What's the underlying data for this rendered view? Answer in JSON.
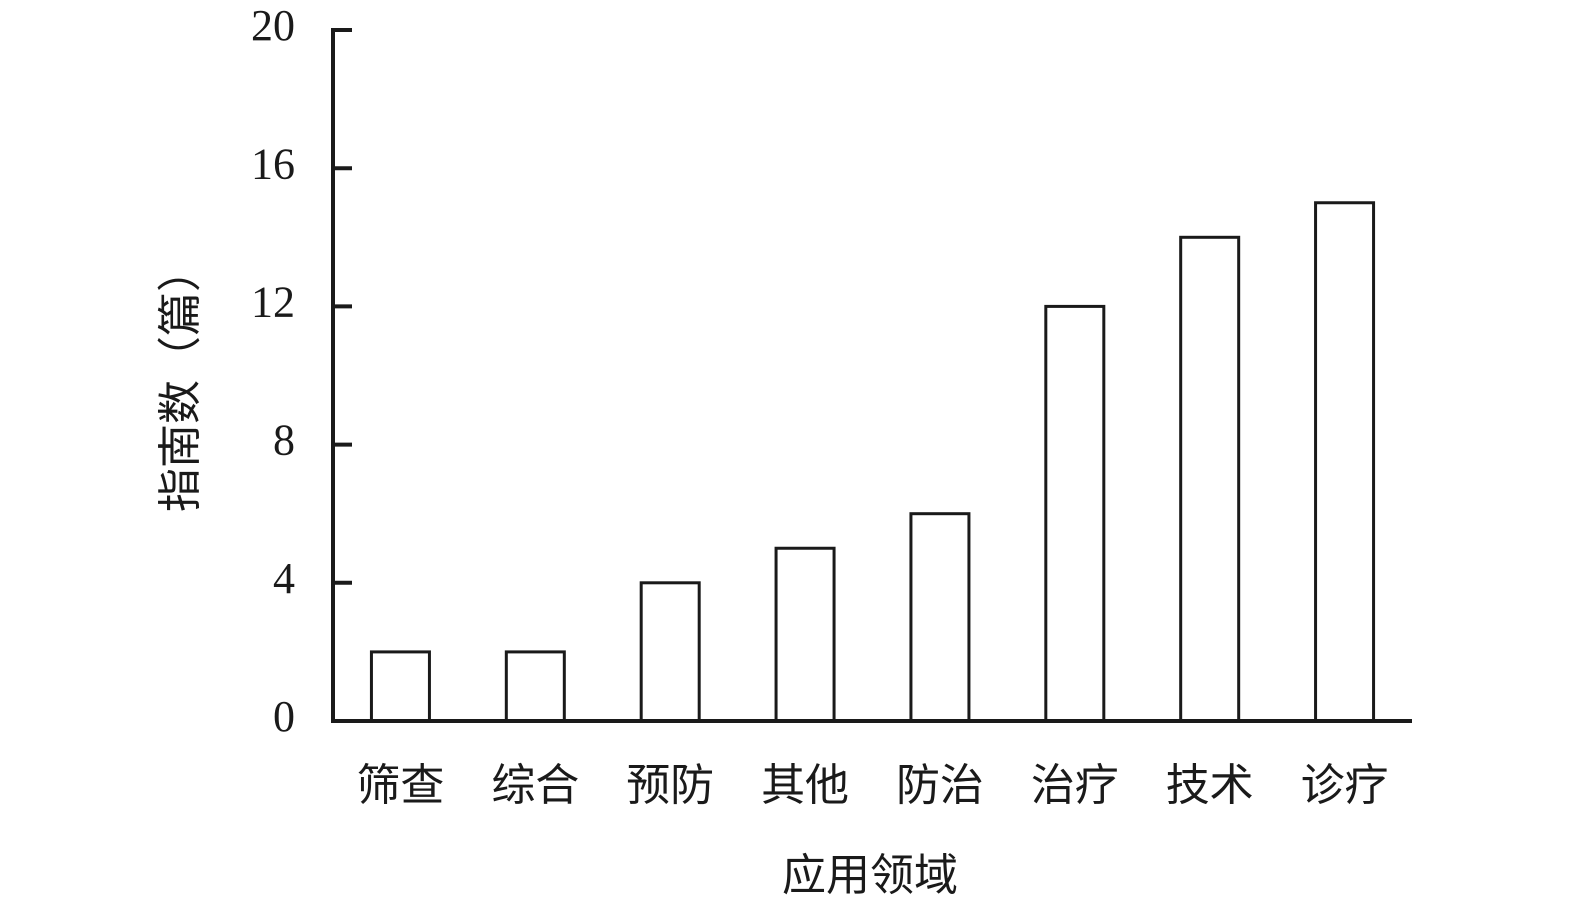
{
  "chart_data": {
    "type": "bar",
    "x_label": "应用领域",
    "y_label": "指南数（篇）",
    "categories": [
      "筛查",
      "综合",
      "预防",
      "其他",
      "防治",
      "治疗",
      "技术",
      "诊疗"
    ],
    "values": [
      2,
      2,
      4,
      5,
      6,
      12,
      14,
      15
    ],
    "color": "#ffffff",
    "edge_color": "#1a1a1a",
    "ylim": [
      0,
      20
    ],
    "yticks": [
      0,
      4,
      8,
      12,
      16,
      20
    ],
    "grid": false
  }
}
